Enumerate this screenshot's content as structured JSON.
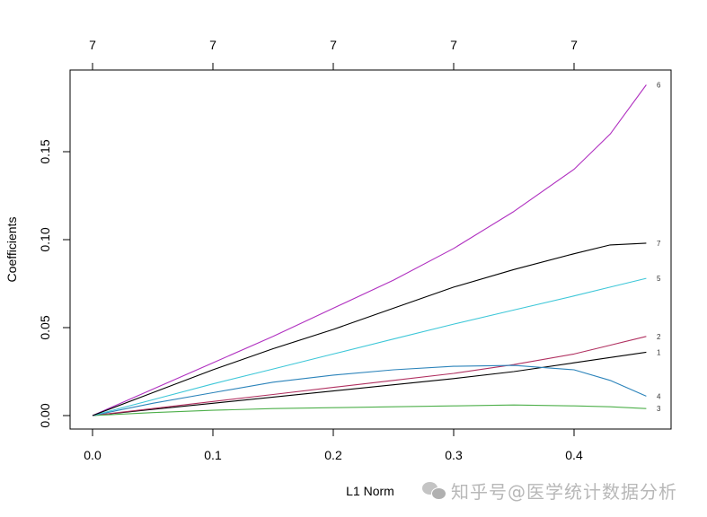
{
  "chart_data": {
    "type": "line",
    "title": "",
    "xlabel": "L1 Norm",
    "ylabel": "Coefficients",
    "xlim": [
      -0.02,
      0.48
    ],
    "ylim": [
      -0.008,
      0.19
    ],
    "grid": false,
    "legend": "inline series labels at right edge",
    "x_ticks": [
      0.0,
      0.1,
      0.2,
      0.3,
      0.4
    ],
    "x_tick_labels": [
      "0.0",
      "0.1",
      "0.2",
      "0.3",
      "0.4"
    ],
    "y_ticks": [
      0.0,
      0.05,
      0.1,
      0.15
    ],
    "y_tick_labels": [
      "0.00",
      "0.05",
      "0.10",
      "0.15"
    ],
    "top_axis_ticks": [
      0.0,
      0.1,
      0.2,
      0.3,
      0.4
    ],
    "top_axis_labels": [
      "7",
      "7",
      "7",
      "7",
      "7"
    ],
    "x": [
      0.0,
      0.05,
      0.1,
      0.15,
      0.2,
      0.25,
      0.3,
      0.35,
      0.4,
      0.43,
      0.46
    ],
    "series": [
      {
        "name": "1",
        "color": "#000000",
        "values": [
          0,
          0.0035,
          0.007,
          0.0105,
          0.014,
          0.0175,
          0.021,
          0.025,
          0.03,
          0.033,
          0.036
        ]
      },
      {
        "name": "2",
        "color": "#b03060",
        "values": [
          0,
          0.004,
          0.008,
          0.012,
          0.016,
          0.02,
          0.024,
          0.029,
          0.035,
          0.04,
          0.045
        ]
      },
      {
        "name": "3",
        "color": "#4daf4a",
        "values": [
          0,
          0.0017,
          0.003,
          0.004,
          0.0045,
          0.005,
          0.0055,
          0.006,
          0.0055,
          0.005,
          0.004
        ]
      },
      {
        "name": "4",
        "color": "#2b83ba",
        "values": [
          0,
          0.007,
          0.013,
          0.019,
          0.023,
          0.026,
          0.028,
          0.0285,
          0.026,
          0.02,
          0.011
        ]
      },
      {
        "name": "5",
        "color": "#3ec7d8",
        "values": [
          0,
          0.009,
          0.018,
          0.0265,
          0.035,
          0.0435,
          0.052,
          0.06,
          0.068,
          0.073,
          0.078
        ]
      },
      {
        "name": "6",
        "color": "#b030c0",
        "values": [
          0,
          0.015,
          0.03,
          0.045,
          0.061,
          0.077,
          0.095,
          0.116,
          0.14,
          0.16,
          0.188
        ]
      },
      {
        "name": "7",
        "color": "#000000",
        "values": [
          0,
          0.013,
          0.026,
          0.038,
          0.049,
          0.061,
          0.073,
          0.083,
          0.092,
          0.097,
          0.098
        ]
      }
    ]
  },
  "watermark": {
    "text": "知乎号@医学统计数据分析"
  }
}
